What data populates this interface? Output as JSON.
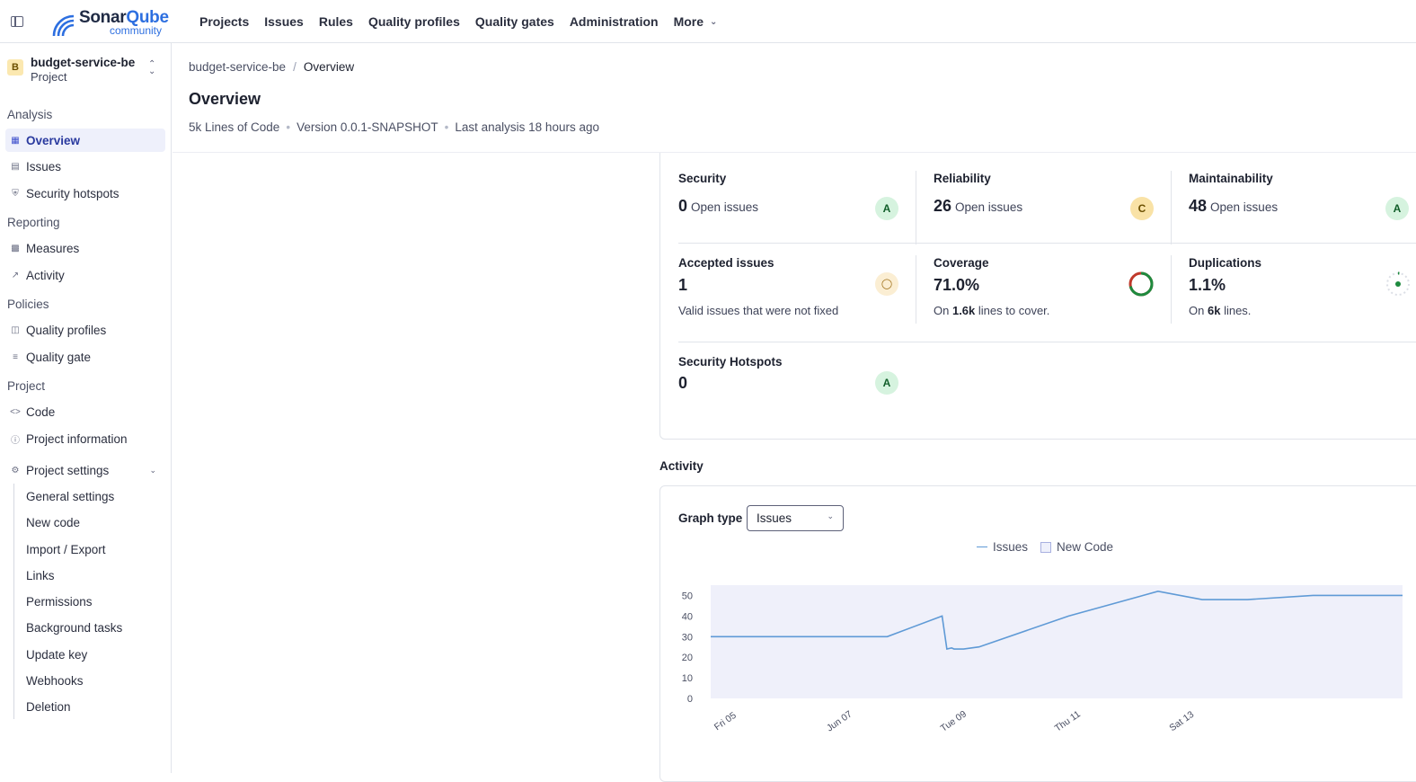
{
  "app": {
    "logo_brand_a": "Sonar",
    "logo_brand_b": "Qube",
    "logo_edition": "community",
    "accent": "#2d6fe0"
  },
  "topnav": {
    "items": [
      "Projects",
      "Issues",
      "Rules",
      "Quality profiles",
      "Quality gates",
      "Administration"
    ],
    "more_label": "More"
  },
  "project": {
    "avatar": "B",
    "name": "budget-service-be",
    "type": "Project"
  },
  "sidebar": {
    "sections": {
      "analysis": "Analysis",
      "reporting": "Reporting",
      "policies": "Policies",
      "project": "Project"
    },
    "items": {
      "overview": "Overview",
      "issues": "Issues",
      "security_hotspots": "Security hotspots",
      "measures": "Measures",
      "activity": "Activity",
      "quality_profiles": "Quality profiles",
      "quality_gate": "Quality gate",
      "code": "Code",
      "project_information": "Project information",
      "project_settings": "Project settings"
    },
    "settings_sub": [
      "General settings",
      "New code",
      "Import / Export",
      "Links",
      "Permissions",
      "Background tasks",
      "Update key",
      "Webhooks",
      "Deletion"
    ]
  },
  "header": {
    "breadcrumb_project": "budget-service-be",
    "breadcrumb_sep": "/",
    "breadcrumb_current": "Overview",
    "title": "Overview",
    "lines_of_code": "5k Lines of Code",
    "version": "Version 0.0.1-SNAPSHOT",
    "last_analysis": "Last analysis 18 hours ago"
  },
  "metrics": {
    "security": {
      "title": "Security",
      "value": "0",
      "suffix": "Open issues",
      "grade": "A"
    },
    "reliability": {
      "title": "Reliability",
      "value": "26",
      "suffix": "Open issues",
      "grade": "C"
    },
    "maintainability": {
      "title": "Maintainability",
      "value": "48",
      "suffix": "Open issues",
      "grade": "A"
    },
    "accepted": {
      "title": "Accepted issues",
      "value": "1",
      "desc": "Valid issues that were not fixed"
    },
    "coverage": {
      "title": "Coverage",
      "value": "71.0%",
      "pre": "On",
      "lines": "1.6k",
      "post": "lines to cover.",
      "percent": 71
    },
    "duplications": {
      "title": "Duplications",
      "value": "1.1%",
      "pre": "On",
      "lines": "6k",
      "post": "lines.",
      "percent": 1.1
    },
    "hotspots": {
      "title": "Security Hotspots",
      "value": "0",
      "grade": "A"
    }
  },
  "activity": {
    "title": "Activity",
    "graph_type_label": "Graph type",
    "graph_type_value": "Issues",
    "legend_issues": "Issues",
    "legend_new_code": "New Code"
  },
  "chart_data": {
    "type": "line",
    "yticks": [
      0,
      10,
      20,
      30,
      40,
      50
    ],
    "ylim": [
      0,
      55
    ],
    "xticks": [
      "Fri 05",
      "Jun 07",
      "Tue 09",
      "Thu 11",
      "Sat 13"
    ],
    "series": [
      {
        "name": "Issues",
        "x": [
          0,
          1.48,
          1.94,
          1.98,
          2.02,
          2.04,
          2.06,
          2.12,
          2.25,
          3.0,
          3.75,
          4.12,
          4.5,
          5.05,
          5.8
        ],
        "values": [
          30,
          30,
          40,
          24,
          24.5,
          24,
          24,
          24,
          25,
          40,
          52,
          48,
          48,
          50,
          50
        ]
      }
    ],
    "new_code_shaded": true,
    "colors": {
      "line": "#5f9ad6",
      "new_code_bg": "#eff0fa"
    }
  }
}
